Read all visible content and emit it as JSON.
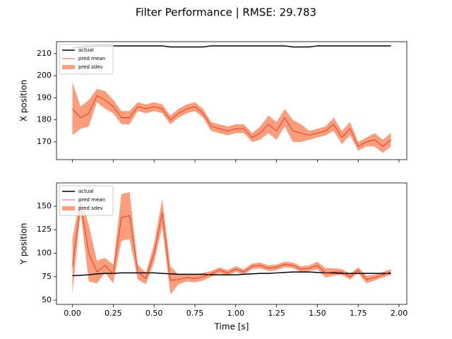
{
  "title": "Filter Performance | RMSE: 29.783",
  "chart_data": [
    {
      "type": "line",
      "ylabel": "X position",
      "x": [
        0,
        0.05,
        0.1,
        0.15,
        0.2,
        0.25,
        0.3,
        0.35,
        0.4,
        0.45,
        0.5,
        0.55,
        0.6,
        0.65,
        0.7,
        0.75,
        0.8,
        0.85,
        0.9,
        0.95,
        1.0,
        1.05,
        1.1,
        1.15,
        1.2,
        1.25,
        1.3,
        1.35,
        1.4,
        1.45,
        1.5,
        1.55,
        1.6,
        1.65,
        1.7,
        1.75,
        1.8,
        1.85,
        1.9,
        1.95
      ],
      "xlim": [
        -0.0975,
        2.0475
      ],
      "xticks": [
        0,
        0.25,
        0.5,
        0.75,
        1,
        1.25,
        1.5,
        1.75,
        2
      ],
      "xtick_labels": false,
      "ylim": [
        162,
        215.4
      ],
      "yticks": [
        170,
        180,
        190,
        200,
        210
      ],
      "legend": "upper left",
      "series": [
        {
          "name": "actual",
          "color": "#000000",
          "values": [
            212.6,
            212.9,
            213.2,
            213.5,
            213.5,
            213.5,
            213.5,
            213.5,
            213.5,
            213.5,
            213.5,
            213.5,
            213,
            213,
            213,
            213,
            213,
            213.5,
            213.5,
            213.5,
            213.5,
            213.5,
            213.5,
            213.5,
            213.5,
            213.5,
            213.5,
            213,
            213,
            213,
            213.5,
            213.5,
            213.5,
            213.5,
            213.5,
            213.5,
            213.5,
            213.5,
            213.5,
            213.5
          ]
        },
        {
          "name": "pred mean",
          "color": "#e0261c",
          "values": [
            185,
            181,
            183,
            191,
            189,
            186,
            181,
            181,
            186,
            185,
            186,
            185,
            180,
            183,
            185,
            186,
            183,
            177,
            176,
            175,
            176,
            176,
            172,
            174,
            178,
            175,
            181,
            175,
            174,
            173,
            174,
            175,
            178,
            172,
            176,
            168,
            170,
            171,
            168,
            171
          ]
        },
        {
          "name": "pred sdev",
          "color": "#fc9e7c",
          "values": [
            12,
            5,
            6,
            3,
            4,
            3,
            3,
            3,
            2,
            2,
            2,
            2,
            2,
            2,
            2,
            2,
            2,
            2,
            2,
            2,
            2,
            2,
            2,
            3,
            4,
            4,
            4,
            5,
            4,
            2,
            2,
            2,
            3,
            3,
            3,
            2,
            2,
            3,
            3,
            3
          ]
        }
      ]
    },
    {
      "type": "line",
      "ylabel": "Y position",
      "xlabel": "Time [s]",
      "x": [
        0,
        0.05,
        0.1,
        0.15,
        0.2,
        0.25,
        0.3,
        0.35,
        0.4,
        0.45,
        0.5,
        0.55,
        0.6,
        0.65,
        0.7,
        0.75,
        0.8,
        0.85,
        0.9,
        0.95,
        1.0,
        1.05,
        1.1,
        1.15,
        1.2,
        1.25,
        1.3,
        1.35,
        1.4,
        1.45,
        1.5,
        1.55,
        1.6,
        1.65,
        1.7,
        1.75,
        1.8,
        1.85,
        1.9,
        1.95
      ],
      "xlim": [
        -0.0975,
        2.0475
      ],
      "xticks": [
        {
          "value": 0,
          "label": "0.00"
        },
        {
          "value": 0.25,
          "label": "0.25"
        },
        {
          "value": 0.5,
          "label": "0.50"
        },
        {
          "value": 0.75,
          "label": "0.75"
        },
        {
          "value": 1,
          "label": "1.00"
        },
        {
          "value": 1.25,
          "label": "1.25"
        },
        {
          "value": 1.5,
          "label": "1.50"
        },
        {
          "value": 1.75,
          "label": "1.75"
        },
        {
          "value": 2,
          "label": "2.00"
        }
      ],
      "xtick_labels": true,
      "ylim": [
        45.5,
        174.8
      ],
      "yticks": [
        50,
        75,
        100,
        125,
        150
      ],
      "legend": "upper left",
      "series": [
        {
          "name": "actual",
          "color": "#000000",
          "values": [
            76,
            76.5,
            77,
            78,
            78.5,
            78.5,
            79,
            79,
            79,
            79,
            79,
            78.5,
            78,
            77.5,
            77.5,
            77.5,
            77.5,
            77,
            77,
            77,
            77,
            77.5,
            78,
            78.5,
            78.5,
            79,
            79.5,
            80,
            80,
            80,
            79.5,
            79,
            79,
            78.5,
            78.5,
            78.5,
            78.5,
            78.5,
            78.5,
            78.5
          ]
        },
        {
          "name": "pred mean",
          "color": "#e0261c",
          "values": [
            86,
            152,
            100,
            80,
            87,
            78,
            138,
            140,
            80,
            73,
            100,
            143,
            71,
            72,
            74,
            73,
            75,
            78,
            82,
            79,
            83,
            80,
            86,
            87,
            84,
            85,
            88,
            87,
            83,
            84,
            87,
            79,
            80,
            80,
            75,
            82,
            72,
            74,
            77,
            80
          ]
        },
        {
          "name": "pred sdev",
          "color": "#fc9e7c",
          "values": [
            30,
            8,
            30,
            12,
            8,
            10,
            25,
            25,
            8,
            6,
            10,
            15,
            15,
            5,
            4,
            4,
            4,
            3,
            3,
            3,
            3,
            3,
            3,
            3,
            3,
            3,
            3,
            3,
            3,
            3,
            4,
            5,
            4,
            3,
            3,
            3,
            4,
            3,
            3,
            3
          ]
        }
      ]
    }
  ]
}
